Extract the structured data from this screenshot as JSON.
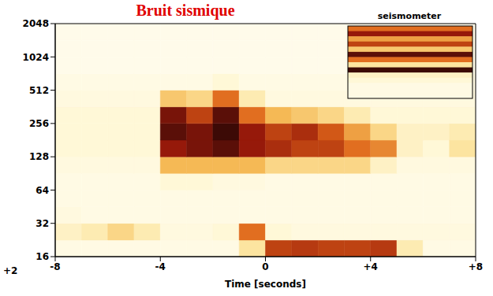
{
  "chart_data": {
    "type": "heatmap",
    "title": "Bruit sismique",
    "xlabel": "Time [seconds]",
    "xlim": [
      -8,
      8
    ],
    "xticks": [
      -8,
      -4,
      0,
      {
        "value": 4,
        "label": "+4"
      },
      {
        "value": 8,
        "label": "+8"
      }
    ],
    "ylim": [
      16,
      2048
    ],
    "yticks": [
      16,
      32,
      64,
      128,
      256,
      512,
      1024,
      2048
    ],
    "log": "y",
    "x_edges": [
      -8,
      -7,
      -6,
      -5,
      -4,
      -3,
      -2,
      -1,
      0,
      1,
      2,
      3,
      4,
      5,
      6,
      7,
      8
    ],
    "y_edges": [
      16,
      22.6,
      32,
      45.3,
      64,
      90.5,
      128,
      181,
      256,
      362,
      512,
      724,
      1024,
      1448,
      2048
    ],
    "cells": [
      [
        0.1,
        0.1,
        0.1,
        0.1,
        0.1,
        0.1,
        0.1,
        0.3,
        0.7,
        0.72,
        0.7,
        0.7,
        0.72,
        0.25,
        0.1,
        0.1
      ],
      [
        0.2,
        0.25,
        0.35,
        0.25,
        0.12,
        0.12,
        0.15,
        0.6,
        0.15,
        0.12,
        0.12,
        0.12,
        0.12,
        0.12,
        0.12,
        0.12
      ],
      [
        0.12,
        0.1,
        0.1,
        0.1,
        0.1,
        0.1,
        0.1,
        0.1,
        0.1,
        0.1,
        0.1,
        0.1,
        0.1,
        0.1,
        0.1,
        0.1
      ],
      [
        0.1,
        0.1,
        0.1,
        0.1,
        0.1,
        0.1,
        0.1,
        0.1,
        0.1,
        0.1,
        0.1,
        0.1,
        0.1,
        0.1,
        0.1,
        0.1
      ],
      [
        0.1,
        0.1,
        0.1,
        0.1,
        0.15,
        0.15,
        0.12,
        0.12,
        0.1,
        0.1,
        0.1,
        0.1,
        0.1,
        0.1,
        0.1,
        0.1
      ],
      [
        0.12,
        0.12,
        0.12,
        0.12,
        0.45,
        0.45,
        0.45,
        0.45,
        0.35,
        0.35,
        0.35,
        0.35,
        0.2,
        0.12,
        0.12,
        0.12
      ],
      [
        0.15,
        0.15,
        0.15,
        0.15,
        0.8,
        0.85,
        0.9,
        0.8,
        0.75,
        0.7,
        0.7,
        0.6,
        0.55,
        0.2,
        0.15,
        0.3
      ],
      [
        0.15,
        0.15,
        0.15,
        0.15,
        0.9,
        0.85,
        0.95,
        0.8,
        0.7,
        0.75,
        0.65,
        0.5,
        0.35,
        0.2,
        0.2,
        0.25
      ],
      [
        0.15,
        0.15,
        0.15,
        0.15,
        0.85,
        0.7,
        0.9,
        0.6,
        0.45,
        0.4,
        0.35,
        0.25,
        0.15,
        0.15,
        0.15,
        0.15
      ],
      [
        0.12,
        0.12,
        0.12,
        0.12,
        0.4,
        0.35,
        0.6,
        0.25,
        0.12,
        0.12,
        0.12,
        0.12,
        0.12,
        0.12,
        0.12,
        0.12
      ],
      [
        0.1,
        0.1,
        0.1,
        0.1,
        0.1,
        0.1,
        0.15,
        0.1,
        0.1,
        0.1,
        0.1,
        0.1,
        0.1,
        0.1,
        0.1,
        0.1
      ],
      [
        0.08,
        0.08,
        0.08,
        0.08,
        0.08,
        0.08,
        0.08,
        0.08,
        0.08,
        0.08,
        0.08,
        0.08,
        0.08,
        0.08,
        0.08,
        0.08
      ],
      [
        0.08,
        0.08,
        0.08,
        0.08,
        0.08,
        0.08,
        0.08,
        0.08,
        0.08,
        0.08,
        0.08,
        0.08,
        0.08,
        0.08,
        0.08,
        0.08
      ],
      [
        0.08,
        0.08,
        0.08,
        0.08,
        0.08,
        0.08,
        0.08,
        0.08,
        0.08,
        0.08,
        0.08,
        0.08,
        0.08,
        0.08,
        0.08,
        0.08
      ]
    ],
    "inset": {
      "label": "seismometer",
      "rows": [
        0.6,
        0.8,
        0.5,
        0.7,
        0.4,
        0.9,
        0.6,
        0.3,
        0.95,
        0.2,
        0.15,
        0.1,
        0.1,
        0.1
      ]
    },
    "annotations": [
      "+2"
    ]
  }
}
